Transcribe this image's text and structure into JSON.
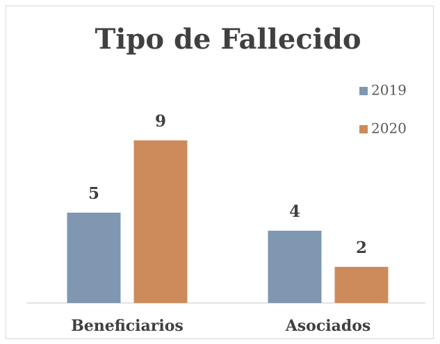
{
  "chart_data": {
    "type": "bar",
    "title": "Tipo de Fallecido",
    "categories": [
      "Beneficiarios",
      "Asociados"
    ],
    "series": [
      {
        "name": "2019",
        "color": "#7f97b0",
        "values": [
          5,
          4
        ]
      },
      {
        "name": "2020",
        "color": "#cd8b5c",
        "values": [
          9,
          2
        ]
      }
    ]
  }
}
